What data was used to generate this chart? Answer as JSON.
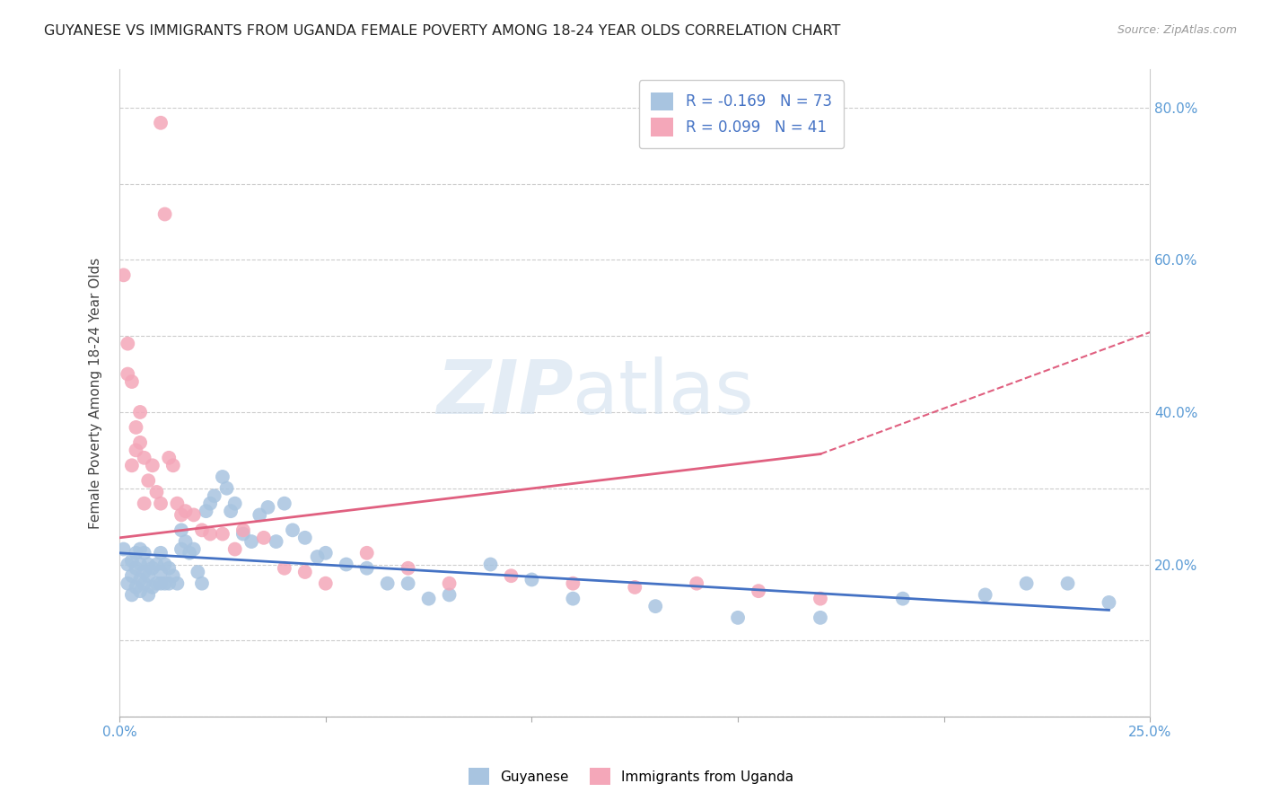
{
  "title": "GUYANESE VS IMMIGRANTS FROM UGANDA FEMALE POVERTY AMONG 18-24 YEAR OLDS CORRELATION CHART",
  "source": "Source: ZipAtlas.com",
  "ylabel": "Female Poverty Among 18-24 Year Olds",
  "xlim": [
    0.0,
    0.25
  ],
  "ylim": [
    0.0,
    0.85
  ],
  "x_ticks": [
    0.0,
    0.05,
    0.1,
    0.15,
    0.2,
    0.25
  ],
  "x_tick_labels": [
    "0.0%",
    "",
    "",
    "",
    "",
    "25.0%"
  ],
  "y_ticks": [
    0.0,
    0.2,
    0.4,
    0.6,
    0.8
  ],
  "y_tick_labels": [
    "",
    "20.0%",
    "40.0%",
    "60.0%",
    "80.0%"
  ],
  "background_color": "#ffffff",
  "grid_color": "#cccccc",
  "R_blue": -0.169,
  "N_blue": 73,
  "R_pink": 0.099,
  "N_pink": 41,
  "blue_scatter_color": "#a8c4e0",
  "pink_scatter_color": "#f4a7b9",
  "blue_line_color": "#4472c4",
  "pink_line_color": "#e06080",
  "tick_label_color": "#5b9bd5",
  "legend_text_color": "#4472c4",
  "legend_blue_label": "Guyanese",
  "legend_pink_label": "Immigrants from Uganda",
  "blue_scatter_x": [
    0.001,
    0.002,
    0.002,
    0.003,
    0.003,
    0.003,
    0.004,
    0.004,
    0.004,
    0.005,
    0.005,
    0.005,
    0.005,
    0.006,
    0.006,
    0.006,
    0.007,
    0.007,
    0.007,
    0.008,
    0.008,
    0.009,
    0.009,
    0.01,
    0.01,
    0.01,
    0.011,
    0.011,
    0.012,
    0.012,
    0.013,
    0.014,
    0.015,
    0.015,
    0.016,
    0.017,
    0.018,
    0.019,
    0.02,
    0.021,
    0.022,
    0.023,
    0.025,
    0.026,
    0.027,
    0.028,
    0.03,
    0.032,
    0.034,
    0.036,
    0.038,
    0.04,
    0.042,
    0.045,
    0.048,
    0.05,
    0.055,
    0.06,
    0.065,
    0.07,
    0.075,
    0.08,
    0.09,
    0.1,
    0.11,
    0.13,
    0.15,
    0.17,
    0.19,
    0.21,
    0.22,
    0.23,
    0.24
  ],
  "blue_scatter_y": [
    0.22,
    0.175,
    0.2,
    0.16,
    0.185,
    0.205,
    0.17,
    0.195,
    0.215,
    0.165,
    0.18,
    0.2,
    0.22,
    0.175,
    0.19,
    0.215,
    0.16,
    0.185,
    0.2,
    0.17,
    0.195,
    0.175,
    0.2,
    0.175,
    0.19,
    0.215,
    0.175,
    0.2,
    0.175,
    0.195,
    0.185,
    0.175,
    0.22,
    0.245,
    0.23,
    0.215,
    0.22,
    0.19,
    0.175,
    0.27,
    0.28,
    0.29,
    0.315,
    0.3,
    0.27,
    0.28,
    0.24,
    0.23,
    0.265,
    0.275,
    0.23,
    0.28,
    0.245,
    0.235,
    0.21,
    0.215,
    0.2,
    0.195,
    0.175,
    0.175,
    0.155,
    0.16,
    0.2,
    0.18,
    0.155,
    0.145,
    0.13,
    0.13,
    0.155,
    0.16,
    0.175,
    0.175,
    0.15
  ],
  "pink_scatter_x": [
    0.001,
    0.002,
    0.002,
    0.003,
    0.003,
    0.004,
    0.004,
    0.005,
    0.005,
    0.006,
    0.006,
    0.007,
    0.008,
    0.009,
    0.01,
    0.01,
    0.011,
    0.012,
    0.013,
    0.014,
    0.015,
    0.016,
    0.018,
    0.02,
    0.022,
    0.025,
    0.028,
    0.03,
    0.035,
    0.04,
    0.045,
    0.05,
    0.06,
    0.07,
    0.08,
    0.095,
    0.11,
    0.125,
    0.14,
    0.155,
    0.17
  ],
  "pink_scatter_y": [
    0.58,
    0.45,
    0.49,
    0.33,
    0.44,
    0.35,
    0.38,
    0.36,
    0.4,
    0.28,
    0.34,
    0.31,
    0.33,
    0.295,
    0.28,
    0.78,
    0.66,
    0.34,
    0.33,
    0.28,
    0.265,
    0.27,
    0.265,
    0.245,
    0.24,
    0.24,
    0.22,
    0.245,
    0.235,
    0.195,
    0.19,
    0.175,
    0.215,
    0.195,
    0.175,
    0.185,
    0.175,
    0.17,
    0.175,
    0.165,
    0.155
  ]
}
